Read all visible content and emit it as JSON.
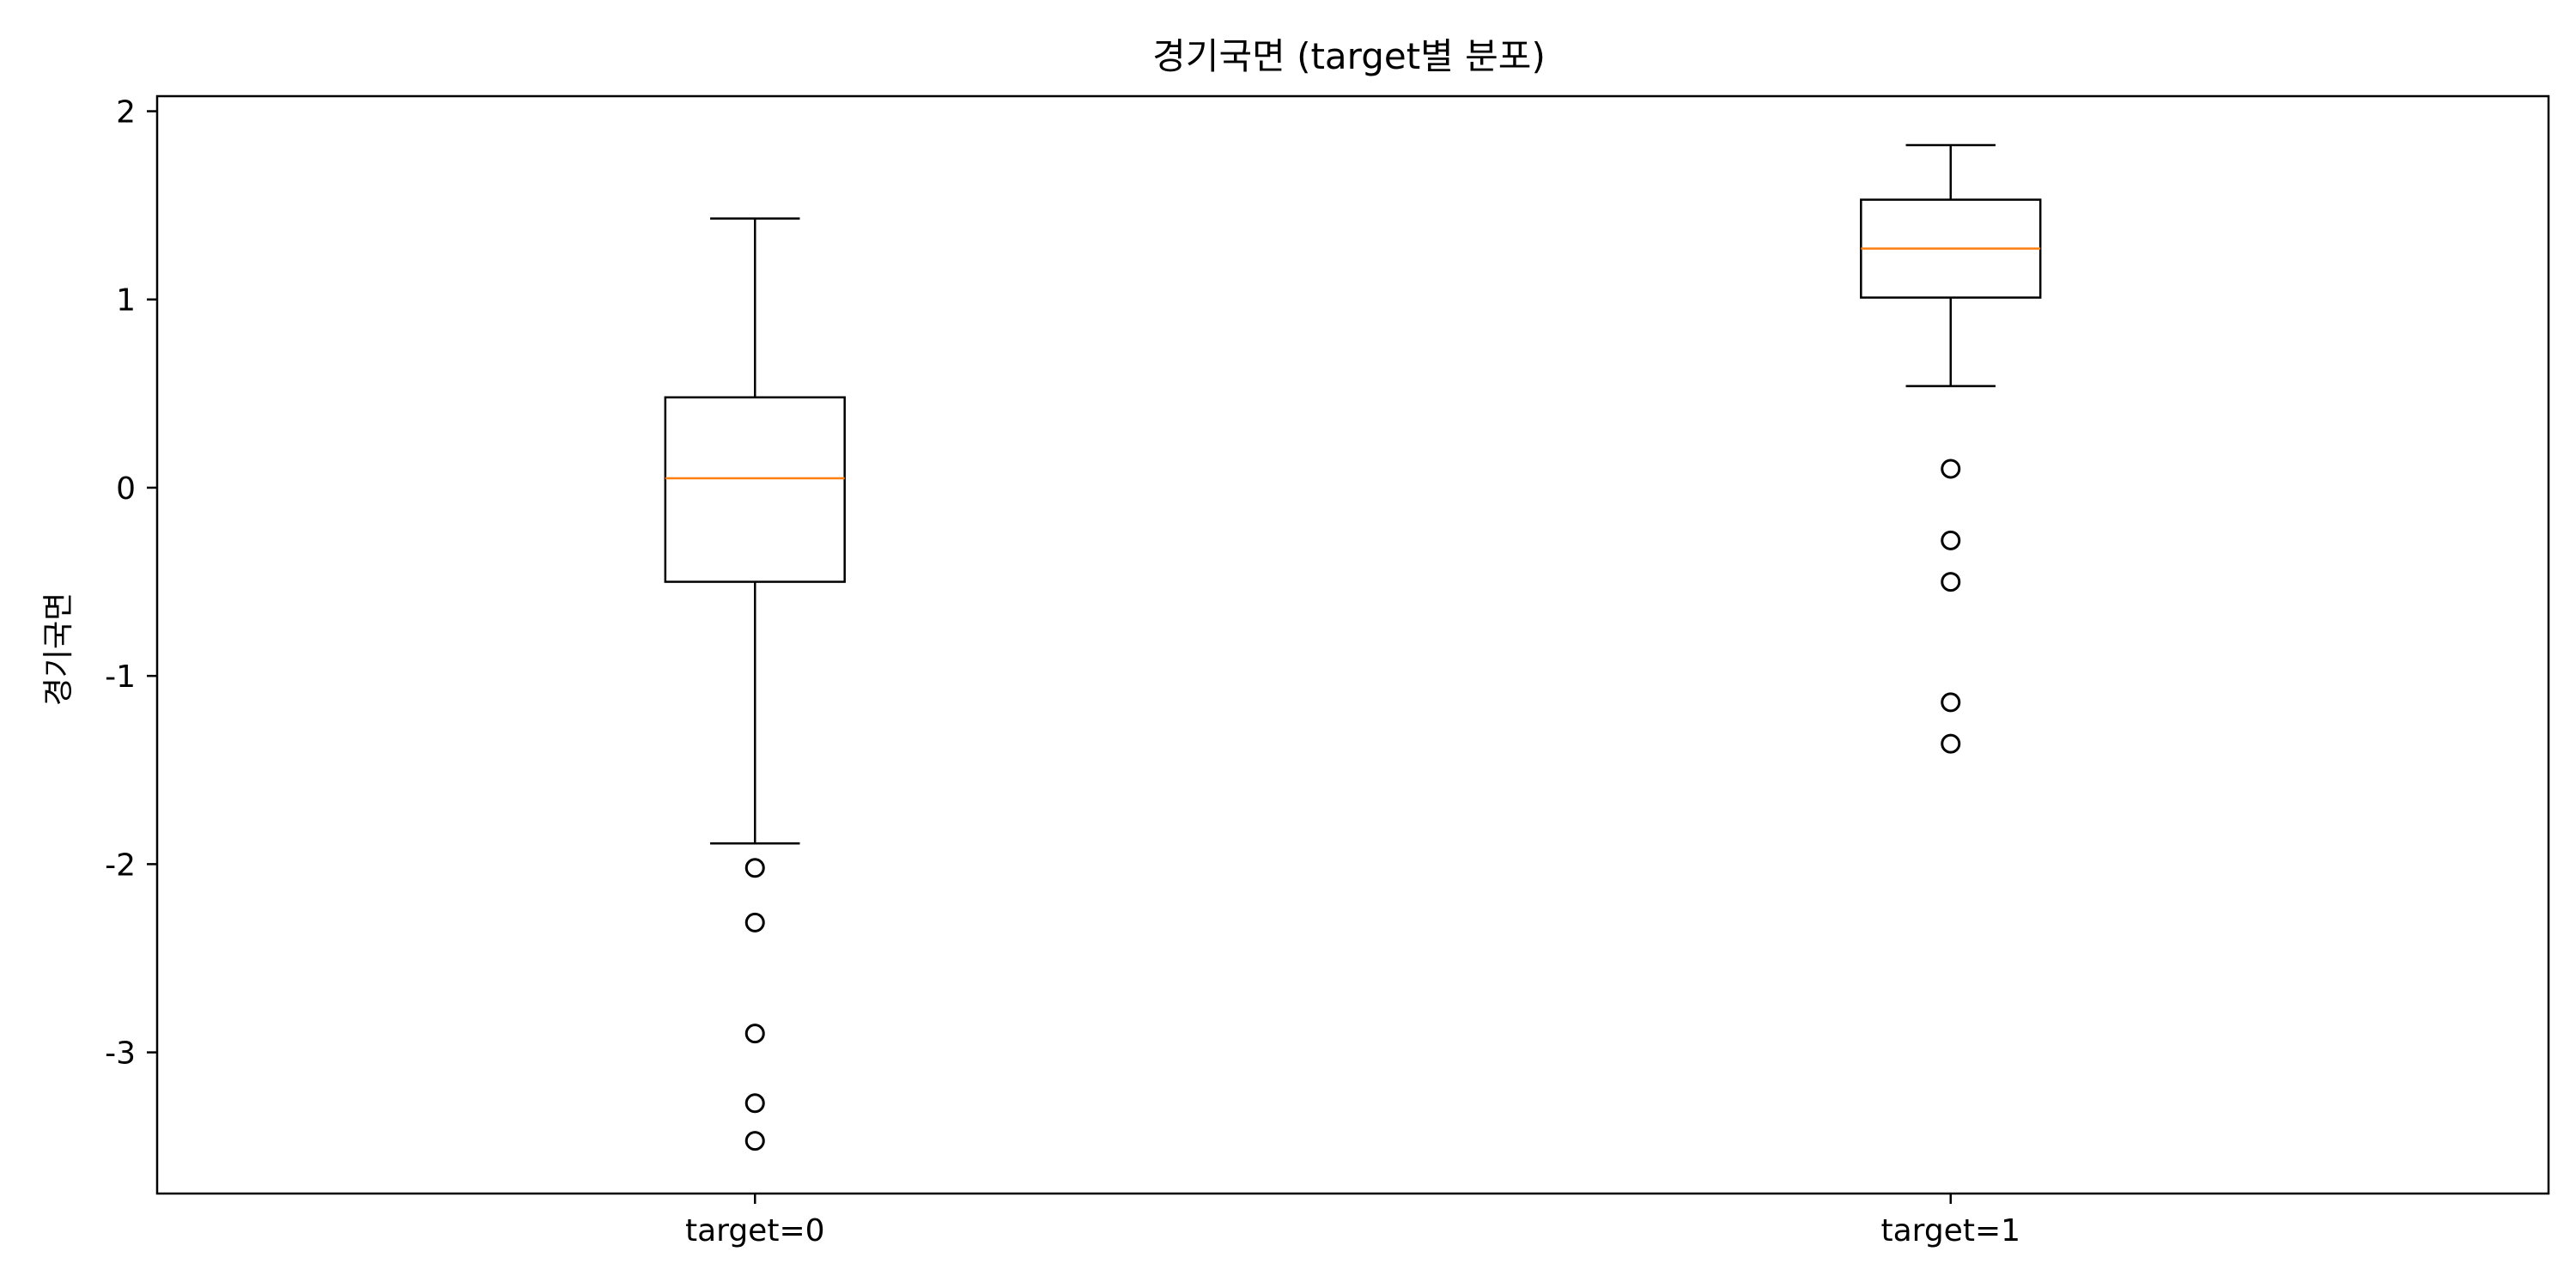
{
  "chart_data": {
    "type": "boxplot",
    "title": "경기국면 (target별 분포)",
    "xlabel": "",
    "ylabel": "경기국면",
    "ylim": [
      -3.75,
      2.08
    ],
    "yticks": [
      2,
      1,
      0,
      -1,
      -2,
      -3
    ],
    "ytick_labels": [
      "2",
      "1",
      "0",
      "-1",
      "-2",
      "-3"
    ],
    "grid": false,
    "categories": [
      "target=0",
      "target=1"
    ],
    "boxes": [
      {
        "label": "target=0",
        "whisker_low": -1.89,
        "q1": -0.5,
        "median": 0.05,
        "q3": 0.48,
        "whisker_high": 1.43,
        "outliers": [
          -2.02,
          -2.31,
          -2.9,
          -3.27,
          -3.47
        ]
      },
      {
        "label": "target=1",
        "whisker_low": 0.54,
        "q1": 1.01,
        "median": 1.27,
        "q3": 1.53,
        "whisker_high": 1.82,
        "outliers": [
          0.1,
          -0.28,
          -0.5,
          -1.14,
          -1.36
        ]
      }
    ],
    "colors": {
      "box": "#000000",
      "median": "#ff7f0e",
      "flier": "#000000"
    }
  }
}
